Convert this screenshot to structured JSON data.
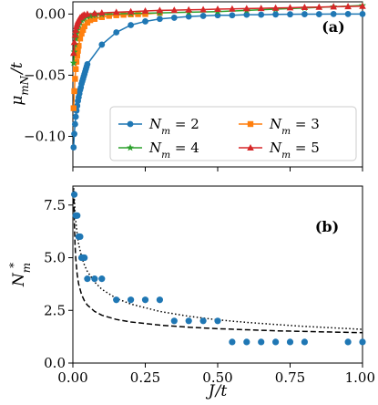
{
  "chart_data": [
    {
      "type": "line",
      "panel_label": "(a)",
      "ylabel": "μ_mN / t",
      "xlim": [
        0,
        1.0
      ],
      "ylim": [
        -0.125,
        0.01
      ],
      "yticks": [
        0.0,
        -0.05,
        -0.1
      ],
      "ytick_labels": [
        "0.00",
        "−0.05",
        "−0.10"
      ],
      "legend": {
        "position": "lower-right",
        "columns": 2
      },
      "series": [
        {
          "name": "N_m = 2",
          "legend_label": "N_m = 2",
          "color": "#1f77b4",
          "marker": "circle",
          "x": [
            0.0025,
            0.005,
            0.0075,
            0.01,
            0.0125,
            0.015,
            0.0175,
            0.02,
            0.0225,
            0.025,
            0.0275,
            0.03,
            0.0325,
            0.035,
            0.0375,
            0.04,
            0.0425,
            0.045,
            0.0475,
            0.05,
            0.1,
            0.15,
            0.2,
            0.25,
            0.3,
            0.35,
            0.4,
            0.45,
            0.5,
            0.55,
            0.6,
            0.65,
            0.7,
            0.75,
            0.8,
            0.85,
            0.9,
            0.95,
            1.0
          ],
          "y": [
            -0.109,
            -0.098,
            -0.09,
            -0.084,
            -0.079,
            -0.075,
            -0.071,
            -0.068,
            -0.065,
            -0.062,
            -0.06,
            -0.057,
            -0.055,
            -0.053,
            -0.051,
            -0.049,
            -0.047,
            -0.045,
            -0.043,
            -0.041,
            -0.025,
            -0.015,
            -0.009,
            -0.006,
            -0.004,
            -0.003,
            -0.002,
            -0.0015,
            -0.001,
            -0.001,
            -0.0005,
            -0.0005,
            -0.0003,
            -0.0002,
            -0.0001,
            -0.0001,
            0.0,
            0.0,
            0.0
          ]
        },
        {
          "name": "N_m = 3",
          "legend_label": "N_m = 3",
          "color": "#ff7f0e",
          "marker": "square",
          "x": [
            0.0025,
            0.005,
            0.0075,
            0.01,
            0.0125,
            0.015,
            0.0175,
            0.02,
            0.025,
            0.03,
            0.035,
            0.04,
            0.05,
            0.06,
            0.075,
            0.1,
            0.125,
            0.15,
            0.175,
            0.2,
            0.225,
            0.25,
            0.3
          ],
          "y": [
            -0.077,
            -0.063,
            -0.053,
            -0.045,
            -0.039,
            -0.034,
            -0.03,
            -0.026,
            -0.02,
            -0.016,
            -0.013,
            -0.01,
            -0.007,
            -0.005,
            -0.004,
            -0.0025,
            -0.0015,
            -0.001,
            -0.0006,
            -0.0003,
            -0.0001,
            0.0,
            0.001
          ]
        },
        {
          "name": "N_m = 4",
          "legend_label": "N_m = 4",
          "color": "#2ca02c",
          "marker": "star",
          "x": [
            0.0025,
            0.005,
            0.0075,
            0.01,
            0.0125,
            0.015,
            0.0175,
            0.02,
            0.025,
            0.03,
            0.035,
            0.04,
            0.05,
            0.06,
            0.07,
            0.08,
            0.1,
            0.2,
            0.3,
            0.4,
            0.5,
            0.6,
            0.7,
            0.8,
            0.9,
            1.0
          ],
          "y": [
            -0.04,
            -0.031,
            -0.025,
            -0.02,
            -0.016,
            -0.013,
            -0.011,
            -0.009,
            -0.007,
            -0.005,
            -0.004,
            -0.003,
            -0.002,
            -0.0015,
            -0.001,
            -0.0007,
            -0.0003,
            0.0005,
            0.001,
            0.0015,
            0.002,
            0.003,
            0.004,
            0.005,
            0.006,
            0.007
          ]
        },
        {
          "name": "N_m = 5",
          "legend_label": "N_m = 5",
          "color": "#d62728",
          "marker": "triangle",
          "x": [
            0.0025,
            0.005,
            0.0075,
            0.01,
            0.0125,
            0.015,
            0.0175,
            0.02,
            0.025,
            0.03,
            0.035,
            0.04,
            0.05,
            0.075,
            0.1,
            0.15,
            0.2,
            0.25,
            0.3,
            0.35,
            0.4,
            0.45,
            0.5,
            0.55,
            0.6,
            0.65,
            0.7,
            0.75,
            0.8,
            0.85,
            0.9,
            0.95,
            1.0
          ],
          "y": [
            -0.032,
            -0.023,
            -0.017,
            -0.013,
            -0.01,
            -0.008,
            -0.006,
            -0.005,
            -0.003,
            -0.002,
            -0.001,
            -0.0005,
            0.0,
            0.0005,
            0.001,
            0.0015,
            0.002,
            0.0025,
            0.003,
            0.0032,
            0.0035,
            0.0037,
            0.004,
            0.0042,
            0.0045,
            0.0047,
            0.005,
            0.0052,
            0.0055,
            0.0057,
            0.006,
            0.0062,
            0.0065
          ]
        }
      ]
    },
    {
      "type": "scatter",
      "panel_label": "(b)",
      "xlabel": "J / t",
      "ylabel": "N_m^*",
      "xlim": [
        0,
        1.0
      ],
      "ylim": [
        0,
        8.4
      ],
      "xticks": [
        0.0,
        0.25,
        0.5,
        0.75,
        1.0
      ],
      "xtick_labels": [
        "0.00",
        "0.25",
        "0.50",
        "0.75",
        "1.00"
      ],
      "yticks": [
        0.0,
        2.5,
        5.0,
        7.5
      ],
      "ytick_labels": [
        "0.0",
        "2.5",
        "5.0",
        "7.5"
      ],
      "points": {
        "color": "#1f77b4",
        "x": [
          0.005,
          0.01,
          0.015,
          0.02,
          0.025,
          0.03,
          0.035,
          0.04,
          0.05,
          0.075,
          0.1,
          0.15,
          0.2,
          0.25,
          0.3,
          0.35,
          0.4,
          0.45,
          0.5,
          0.55,
          0.6,
          0.65,
          0.7,
          0.75,
          0.8,
          0.95,
          1.0
        ],
        "y": [
          8,
          7,
          7,
          6,
          6,
          5,
          5,
          5,
          4,
          4,
          4,
          3,
          3,
          3,
          3,
          2,
          2,
          2,
          2,
          1,
          1,
          1,
          1,
          1,
          1,
          1,
          1
        ]
      },
      "dashed_curve": {
        "x": [
          0.003,
          0.005,
          0.0075,
          0.01,
          0.015,
          0.02,
          0.03,
          0.04,
          0.05,
          0.075,
          0.1,
          0.15,
          0.2,
          0.3,
          0.4,
          0.5,
          0.6,
          0.7,
          0.8,
          0.9,
          1.0
        ],
        "y": [
          8.2,
          6.7,
          5.6,
          4.95,
          4.2,
          3.75,
          3.25,
          2.95,
          2.75,
          2.45,
          2.27,
          2.07,
          1.95,
          1.8,
          1.7,
          1.63,
          1.58,
          1.53,
          1.5,
          1.47,
          1.44
        ]
      },
      "dotted_curve": {
        "x": [
          0.003,
          0.005,
          0.0075,
          0.01,
          0.015,
          0.02,
          0.03,
          0.04,
          0.05,
          0.075,
          0.1,
          0.15,
          0.2,
          0.3,
          0.4,
          0.5,
          0.6,
          0.7,
          0.8,
          0.9,
          1.0
        ],
        "y": [
          8.3,
          7.85,
          7.2,
          6.75,
          6.1,
          5.65,
          5.05,
          4.65,
          4.35,
          3.85,
          3.5,
          3.07,
          2.8,
          2.45,
          2.22,
          2.05,
          1.93,
          1.83,
          1.74,
          1.67,
          1.6
        ]
      }
    }
  ]
}
